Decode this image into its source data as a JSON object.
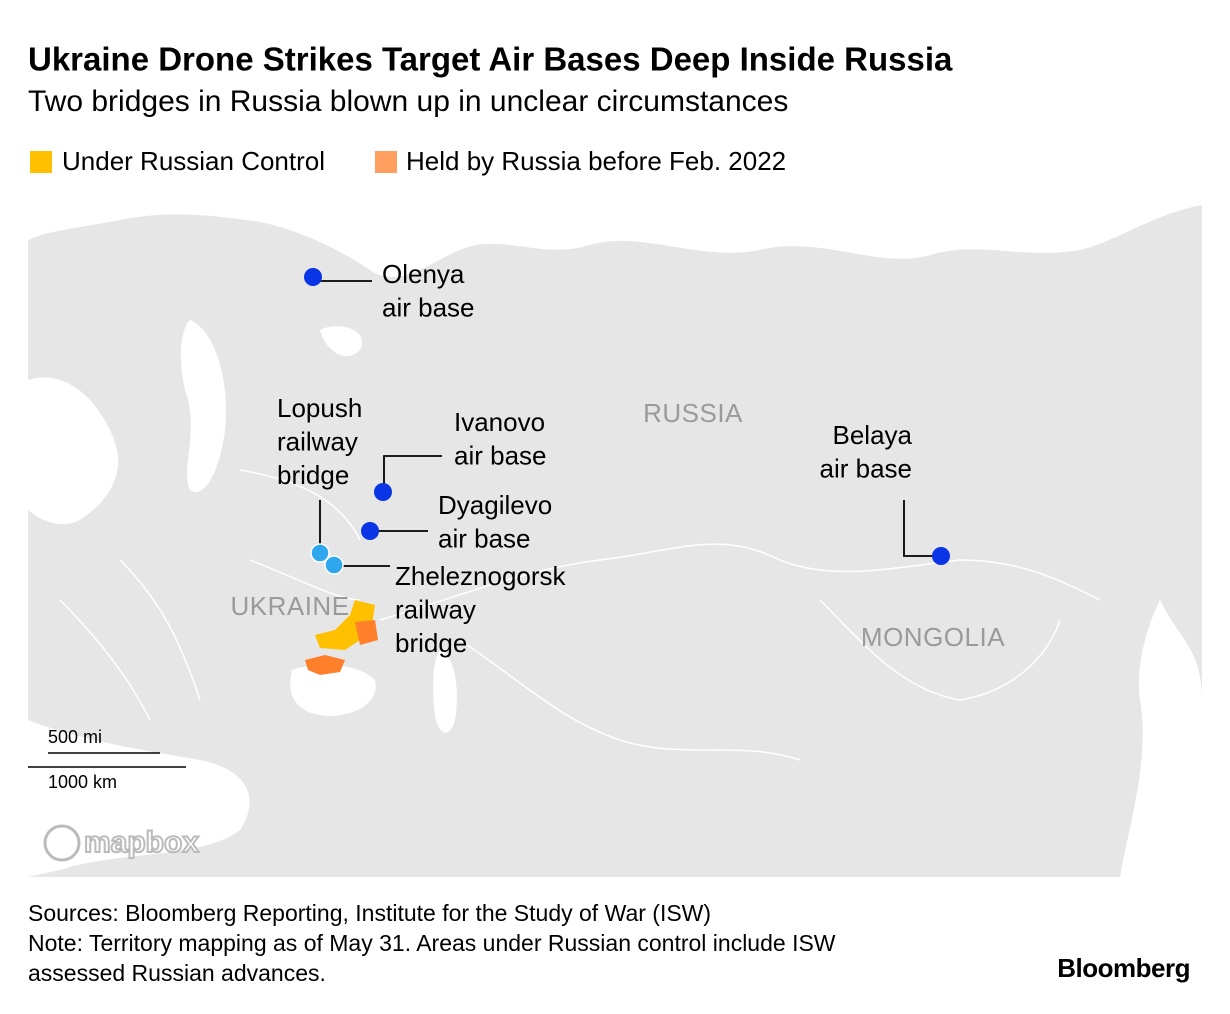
{
  "header": {
    "title": "Ukraine Drone Strikes Target Air Bases Deep Inside Russia",
    "subtitle": "Two bridges in Russia blown up in unclear circumstances"
  },
  "legend": {
    "items": [
      {
        "label": "Under Russian Control",
        "color": "#ffc000"
      },
      {
        "label": "Held by Russia before Feb. 2022",
        "color": "#ff9e5e"
      }
    ]
  },
  "map": {
    "regions": [
      "RUSSIA",
      "UKRAINE",
      "MONGOLIA"
    ],
    "labels": [
      {
        "lines": [
          "Olenya",
          "air base"
        ]
      },
      {
        "lines": [
          "Lopush",
          "railway",
          "bridge"
        ]
      },
      {
        "lines": [
          "Ivanovo",
          "air base"
        ]
      },
      {
        "lines": [
          "Dyagilevo",
          "air base"
        ]
      },
      {
        "lines": [
          "Zheleznogorsk",
          "railway",
          "bridge"
        ]
      },
      {
        "lines": [
          "Belaya",
          "air base"
        ]
      }
    ],
    "scale": [
      "500 mi",
      "1000 km"
    ],
    "attribution": "mapbox"
  },
  "footer": {
    "lines": [
      "Sources: Bloomberg Reporting, Institute for the Study of War (ISW)",
      "Note: Territory mapping as of May 31. Areas under Russian control include ISW",
      "assessed Russian advances."
    ],
    "brand": "Bloomberg"
  }
}
